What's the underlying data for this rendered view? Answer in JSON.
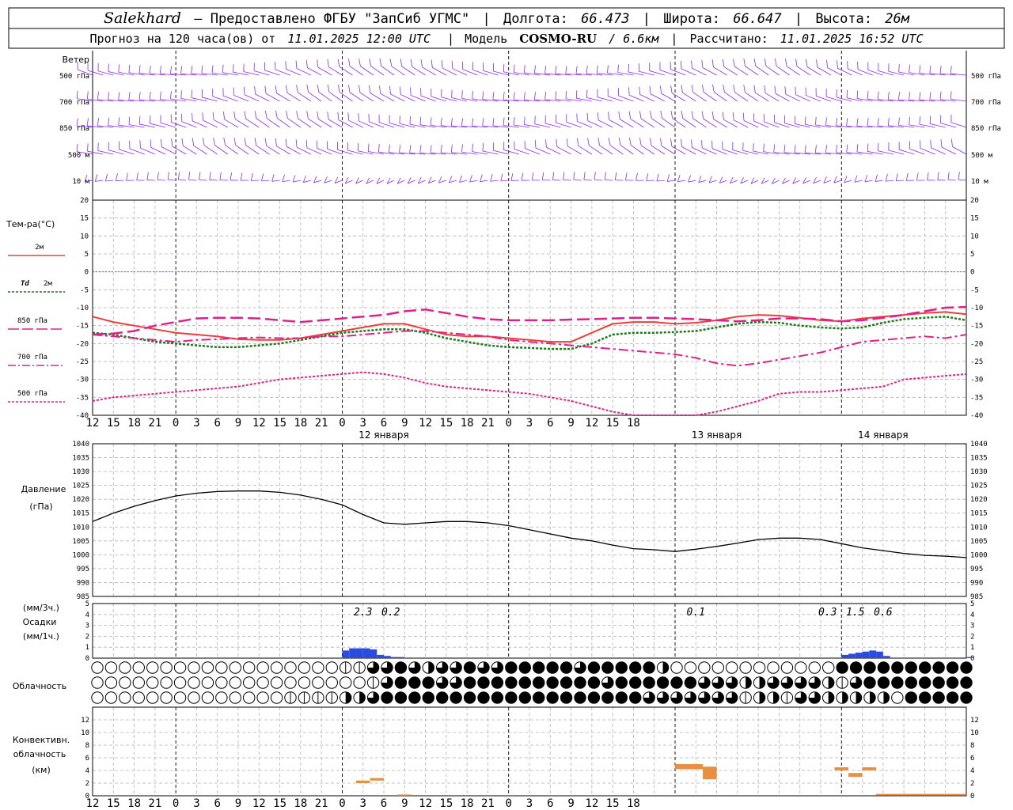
{
  "header": {
    "station": "Salekhard",
    "provider": "– Предоставлено ФГБУ \"ЗапСиб УГМС\"",
    "lon_label": "Долгота:",
    "lon_value": "66.473",
    "lat_label": "Широта:",
    "lat_value": "66.647",
    "alt_label": "Высота:",
    "alt_value": "26м",
    "forecast_prefix": "Прогноз на 120 часа(ов) от",
    "forecast_start": "11.01.2025 12:00 UTC",
    "model_label": "Модель",
    "model_name": "COSMO-RU",
    "model_res": "/ 6.6км",
    "calc_label": "Рассчитано:",
    "calc_time": "11.01.2025 16:52 UTC"
  },
  "labels": {
    "wind": "Ветер",
    "temp": "Тем-ра(°C)",
    "t2m": "2м",
    "td_a": "Td",
    "td_b": "2м",
    "l850": "850 гПа",
    "l700": "700 гПа",
    "l500": "500 гПа",
    "pressure_a": "Давление",
    "pressure_b": "(гПа)",
    "precip_a": "(мм/3ч.)",
    "precip_b": "Осадки",
    "precip_c": "(мм/1ч.)",
    "cloud": "Облачность",
    "conv_a": "Конвективн.",
    "conv_b": "облачность",
    "conv_c": "(км)"
  },
  "colors": {
    "wind": "#8a2be2",
    "t2m": "#e8403a",
    "td2m": "#1a7a1a",
    "t850": "#e0208a",
    "t700": "#e0208a",
    "t500": "#e0208a",
    "zero_line": "#4a6ee0",
    "pressure": "#000000",
    "precip": "#2a4be0",
    "conv": "#e89040"
  },
  "wind_levels": [
    "500 гПа",
    "700 гПа",
    "850 гПа",
    "500 м",
    "10 м"
  ],
  "time_ticks": [
    "12",
    "15",
    "18",
    "21",
    "0",
    "3",
    "6",
    "9",
    "12",
    "15",
    "18",
    "21",
    "0",
    "3",
    "6",
    "9",
    "12",
    "15",
    "18",
    "21",
    "0",
    "3",
    "6",
    "9",
    "12",
    "15",
    "18"
  ],
  "day_labels": [
    "12 января",
    "13 января",
    "14 января"
  ],
  "chart_data": [
    {
      "type": "line",
      "name": "temperature",
      "x_hours": [
        0,
        3,
        6,
        9,
        12,
        15,
        18,
        21,
        24,
        27,
        30,
        33,
        36,
        39,
        42,
        45,
        48,
        51,
        54,
        57,
        60,
        63,
        66,
        69,
        72,
        75,
        78,
        81,
        84,
        87,
        90,
        93,
        96,
        99,
        102,
        105,
        108,
        111,
        114,
        117,
        120,
        123,
        126
      ],
      "ylim": [
        -40,
        20
      ],
      "yticks": [
        20,
        15,
        10,
        5,
        0,
        -5,
        -10,
        -15,
        -20,
        -25,
        -30,
        -35,
        -40
      ],
      "series": [
        {
          "name": "2м",
          "values": [
            -12.5,
            -14,
            -15,
            -16,
            -17,
            -17.5,
            -18,
            -18.8,
            -19,
            -19,
            -18.5,
            -17.5,
            -16.5,
            -15.5,
            -14.5,
            -14.5,
            -16,
            -17.5,
            -18,
            -18,
            -18.5,
            -19,
            -19.5,
            -19.5,
            -17,
            -14.5,
            -14,
            -14,
            -14.5,
            -14.2,
            -13.5,
            -12.5,
            -12,
            -12.2,
            -12.8,
            -13.5,
            -13.8,
            -13,
            -12.5,
            -12,
            -11.5,
            -11.2,
            -11.8
          ]
        },
        {
          "name": "Td 2м",
          "values": [
            -17,
            -17.5,
            -18.5,
            -19.5,
            -20,
            -20.5,
            -21,
            -21,
            -20.5,
            -20,
            -19,
            -18,
            -17,
            -16.5,
            -16,
            -16,
            -17,
            -18.5,
            -19.5,
            -20.5,
            -21,
            -21.2,
            -21.5,
            -21.5,
            -20,
            -17.5,
            -17,
            -17,
            -16.8,
            -16.5,
            -15.5,
            -14.5,
            -14,
            -14.2,
            -15,
            -15.5,
            -15.8,
            -15.5,
            -14.2,
            -13.2,
            -12.8,
            -12.5,
            -13.5
          ]
        },
        {
          "name": "850 гПа",
          "values": [
            -17.5,
            -17.2,
            -16.5,
            -15,
            -14,
            -13,
            -12.8,
            -12.8,
            -13,
            -13.5,
            -14,
            -13.5,
            -13,
            -12.5,
            -12,
            -11,
            -10.5,
            -11.5,
            -12.5,
            -13.2,
            -13.5,
            -13.5,
            -13.5,
            -13.3,
            -13.2,
            -13,
            -12.8,
            -12.8,
            -13,
            -13.2,
            -13.5,
            -13.8,
            -13.5,
            -13,
            -13,
            -13.2,
            -13.8,
            -13.5,
            -12.8,
            -12,
            -11,
            -10,
            -9.8
          ]
        },
        {
          "name": "700 гПа",
          "values": [
            -17.5,
            -18,
            -18.5,
            -19,
            -19.5,
            -19,
            -18.8,
            -18.5,
            -18.3,
            -18.5,
            -18.5,
            -18,
            -18,
            -17.5,
            -17,
            -16.5,
            -16.5,
            -17,
            -17.5,
            -18,
            -19,
            -19.5,
            -20,
            -20.5,
            -21,
            -21.5,
            -22,
            -22.5,
            -23,
            -24,
            -25.5,
            -26.2,
            -25.5,
            -24.5,
            -23.5,
            -22.5,
            -21,
            -19.5,
            -19,
            -18.5,
            -18,
            -18.5,
            -17.5
          ]
        },
        {
          "name": "500 гПа",
          "values": [
            -36,
            -35,
            -34.5,
            -34,
            -33.5,
            -33,
            -32.5,
            -32,
            -31,
            -30,
            -29.5,
            -29,
            -28.5,
            -28,
            -28.5,
            -29.5,
            -31,
            -32,
            -32.5,
            -33,
            -33.5,
            -34,
            -35,
            -36,
            -37.5,
            -39,
            -41,
            -43,
            -42,
            -40.5,
            -39,
            -37.5,
            -36,
            -34,
            -33.5,
            -33.5,
            -33,
            -32.5,
            -32,
            -30,
            -29.5,
            -29,
            -28.5
          ]
        }
      ]
    },
    {
      "type": "line",
      "name": "pressure",
      "x_hours": [
        0,
        3,
        6,
        9,
        12,
        15,
        18,
        21,
        24,
        27,
        30,
        33,
        36,
        39,
        42,
        45,
        48,
        51,
        54,
        57,
        60,
        63,
        66,
        69,
        72,
        75,
        78,
        81,
        84,
        87,
        90,
        93,
        96,
        99,
        102,
        105,
        108,
        111,
        114,
        117,
        120,
        123,
        126
      ],
      "ylim": [
        985,
        1040
      ],
      "yticks": [
        1040,
        1035,
        1030,
        1025,
        1020,
        1015,
        1010,
        1005,
        1000,
        995,
        990,
        985
      ],
      "series": [
        {
          "name": "Давление",
          "values": [
            1012,
            1015,
            1017.5,
            1019.5,
            1021.2,
            1022.2,
            1022.8,
            1023,
            1023,
            1022.5,
            1021.5,
            1020,
            1018,
            1014.5,
            1011.5,
            1011,
            1011.5,
            1012,
            1012,
            1011.5,
            1010.5,
            1009,
            1007.5,
            1006,
            1005,
            1003.5,
            1002.2,
            1001.8,
            1001.2,
            1002,
            1003,
            1004.2,
            1005.5,
            1006,
            1006,
            1005.5,
            1004,
            1002.5,
            1001.5,
            1000.5,
            999.8,
            999.5,
            999
          ]
        }
      ]
    },
    {
      "type": "bar",
      "name": "precipitation",
      "ylim": [
        0,
        5
      ],
      "yticks": [
        5,
        4,
        3,
        2,
        1,
        0
      ],
      "x_hours": [
        36,
        37,
        38,
        39,
        40,
        41,
        42,
        43,
        44,
        45,
        46,
        47,
        48,
        49,
        50,
        51,
        52,
        53,
        54,
        105,
        106,
        107,
        108,
        109,
        110,
        111,
        112,
        113,
        114,
        115,
        116,
        117,
        118,
        119,
        120,
        121,
        122,
        123,
        124,
        125,
        126
      ],
      "values": [
        0.7,
        0.9,
        0.9,
        0.9,
        0.8,
        0.3,
        0.2,
        0.1,
        0.1,
        0,
        0,
        0,
        0,
        0,
        0,
        0,
        0,
        0,
        0,
        0.05,
        0.05,
        0,
        0.3,
        0.4,
        0.5,
        0.6,
        0.7,
        0.6,
        0.2,
        0,
        0,
        0,
        0,
        0,
        0,
        0,
        0,
        0,
        0,
        0,
        0.1
      ],
      "annotations": [
        {
          "x_hour": 39,
          "label": "2.3"
        },
        {
          "x_hour": 43,
          "label": "0.2"
        },
        {
          "x_hour": 87,
          "label": "0.1"
        },
        {
          "x_hour": 106,
          "label": "0.3"
        },
        {
          "x_hour": 110,
          "label": "1.5"
        },
        {
          "x_hour": 114,
          "label": "0.6"
        }
      ]
    },
    {
      "type": "heatmap",
      "name": "cloudiness",
      "rows": [
        "high",
        "middle",
        "low"
      ],
      "cells_per_row": 64,
      "values_0_to_4": [
        [
          0,
          0,
          0,
          0,
          0,
          0,
          0,
          0,
          0,
          0,
          0,
          0,
          0,
          0,
          0,
          0,
          0,
          0,
          1,
          1,
          3,
          3,
          4,
          3,
          2,
          3,
          3,
          4,
          3,
          3,
          4,
          4,
          4,
          4,
          4,
          3,
          4,
          4,
          4,
          4,
          4,
          2,
          0,
          0,
          0,
          0,
          0,
          0,
          0,
          0,
          0,
          0,
          0,
          0,
          4,
          4,
          4,
          4,
          4,
          4,
          4,
          4,
          4,
          4
        ],
        [
          0,
          0,
          0,
          0,
          0,
          0,
          0,
          0,
          0,
          0,
          0,
          0,
          0,
          0,
          0,
          0,
          0,
          0,
          0,
          0,
          1,
          3,
          4,
          4,
          4,
          3,
          3,
          4,
          4,
          4,
          4,
          4,
          4,
          4,
          4,
          4,
          4,
          3,
          4,
          4,
          4,
          4,
          4,
          4,
          3,
          3,
          3,
          2,
          2,
          3,
          3,
          3,
          3,
          2,
          1,
          3,
          4,
          4,
          4,
          4,
          4,
          4,
          4,
          4
        ],
        [
          0,
          0,
          0,
          0,
          0,
          0,
          0,
          0,
          0,
          0,
          0,
          0,
          0,
          0,
          1,
          1,
          1,
          1,
          2,
          2,
          3,
          4,
          4,
          4,
          4,
          4,
          4,
          4,
          4,
          4,
          4,
          4,
          4,
          4,
          4,
          4,
          4,
          4,
          4,
          4,
          3,
          3,
          3,
          3,
          3,
          3,
          3,
          1,
          2,
          2,
          1,
          3,
          3,
          2,
          2,
          2,
          2,
          2,
          0,
          4,
          4,
          4,
          4,
          4
        ]
      ]
    },
    {
      "type": "bar",
      "name": "convective_clouds",
      "ylim": [
        0,
        14
      ],
      "yticks": [
        12,
        10,
        8,
        6,
        4,
        2,
        0
      ],
      "bars": [
        {
          "x0": 38,
          "x1": 40,
          "bottom": 2.0,
          "top": 2.4
        },
        {
          "x0": 40,
          "x1": 42,
          "bottom": 2.4,
          "top": 2.8
        },
        {
          "x0": 44,
          "x1": 46,
          "bottom": 0.1,
          "top": 0.2
        },
        {
          "x0": 84,
          "x1": 88,
          "bottom": 4.2,
          "top": 5.0
        },
        {
          "x0": 88,
          "x1": 90,
          "bottom": 2.6,
          "top": 4.6
        },
        {
          "x0": 107,
          "x1": 109,
          "bottom": 4.0,
          "top": 4.5
        },
        {
          "x0": 109,
          "x1": 111,
          "bottom": 3.0,
          "top": 3.6
        },
        {
          "x0": 111,
          "x1": 113,
          "bottom": 4.0,
          "top": 4.5
        },
        {
          "x0": 113,
          "x1": 126,
          "bottom": 0.1,
          "top": 0.3
        }
      ]
    }
  ]
}
